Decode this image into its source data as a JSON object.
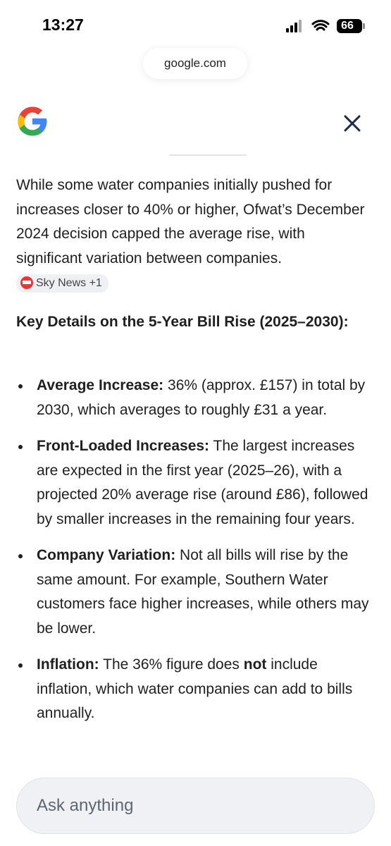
{
  "status_bar": {
    "time": "13:27",
    "battery": "66"
  },
  "address_bar": {
    "url": "google.com"
  },
  "answer": {
    "paragraph": "While some water companies initially pushed for increases closer to 40% or higher, Ofwat’s December 2024 decision capped the average rise, with significant variation between companies.",
    "source_chip": "Sky News +1",
    "heading": "Key Details on the 5-Year Bill Rise (2025–2030):",
    "items": [
      {
        "label": "Average Increase:",
        "segments": [
          "36% (approx. £157) in total by 2030, which averages to roughly £31 a year."
        ]
      },
      {
        "label": "Front-Loaded Increases:",
        "segments": [
          "The largest increases are expected in the first year (2025–26), with a projected 20% average rise (around £86), followed by smaller increases in the remaining four years."
        ]
      },
      {
        "label": "Company Variation:",
        "segments": [
          "Not all bills will rise by the same amount. For example, Southern Water customers face higher increases, while others may be lower."
        ]
      },
      {
        "label": "Inflation:",
        "segments": [
          "The 36% figure does ",
          "not",
          " include inflation, which water companies can add to bills annually."
        ]
      }
    ]
  },
  "input": {
    "placeholder": "Ask anything"
  }
}
